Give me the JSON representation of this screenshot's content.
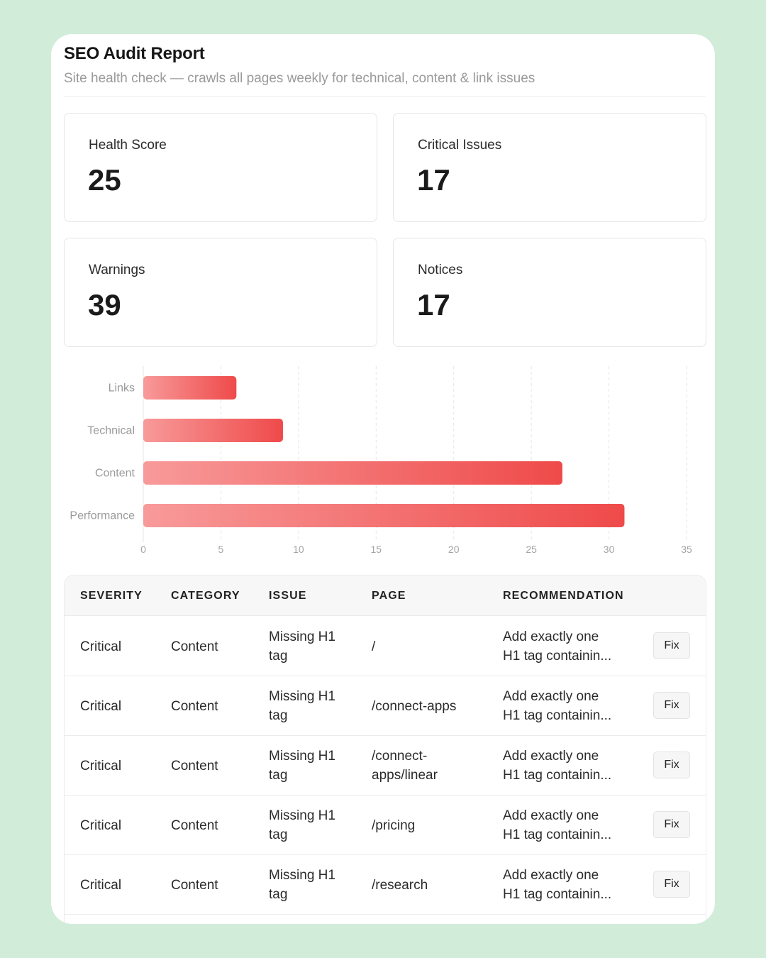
{
  "report": {
    "title": "SEO Audit Report",
    "subtitle": "Site health check — crawls all pages weekly for technical, content & link issues"
  },
  "stats": [
    {
      "label": "Health Score",
      "value": "25"
    },
    {
      "label": "Critical Issues",
      "value": "17"
    },
    {
      "label": "Warnings",
      "value": "39"
    },
    {
      "label": "Notices",
      "value": "17"
    }
  ],
  "chart_data": {
    "type": "bar",
    "orientation": "horizontal",
    "categories": [
      "Links",
      "Technical",
      "Content",
      "Performance"
    ],
    "values": [
      6,
      9,
      27,
      31
    ],
    "xlim": [
      0,
      35
    ],
    "xticks": [
      0,
      5,
      10,
      15,
      20,
      25,
      30,
      35
    ],
    "grid": "vertical-dashed",
    "bar_color_start": "#f89a9a",
    "bar_color_end": "#ef4a4a"
  },
  "table": {
    "headers": [
      "SEVERITY",
      "CATEGORY",
      "ISSUE",
      "PAGE",
      "RECOMMENDATION"
    ],
    "rows": [
      {
        "severity": "Critical",
        "category": "Content",
        "issue": [
          "Missing H1",
          "tag"
        ],
        "page": [
          "/"
        ],
        "recommendation": [
          "Add exactly one",
          "H1 tag containin..."
        ],
        "action": "Fix"
      },
      {
        "severity": "Critical",
        "category": "Content",
        "issue": [
          "Missing H1",
          "tag"
        ],
        "page": [
          "/connect-apps"
        ],
        "recommendation": [
          "Add exactly one",
          "H1 tag containin..."
        ],
        "action": "Fix"
      },
      {
        "severity": "Critical",
        "category": "Content",
        "issue": [
          "Missing H1",
          "tag"
        ],
        "page": [
          "/connect-",
          "apps/linear"
        ],
        "recommendation": [
          "Add exactly one",
          "H1 tag containin..."
        ],
        "action": "Fix"
      },
      {
        "severity": "Critical",
        "category": "Content",
        "issue": [
          "Missing H1",
          "tag"
        ],
        "page": [
          "/pricing"
        ],
        "recommendation": [
          "Add exactly one",
          "H1 tag containin..."
        ],
        "action": "Fix"
      },
      {
        "severity": "Critical",
        "category": "Content",
        "issue": [
          "Missing H1",
          "tag"
        ],
        "page": [
          "/research"
        ],
        "recommendation": [
          "Add exactly one",
          "H1 tag containin..."
        ],
        "action": "Fix"
      }
    ]
  }
}
